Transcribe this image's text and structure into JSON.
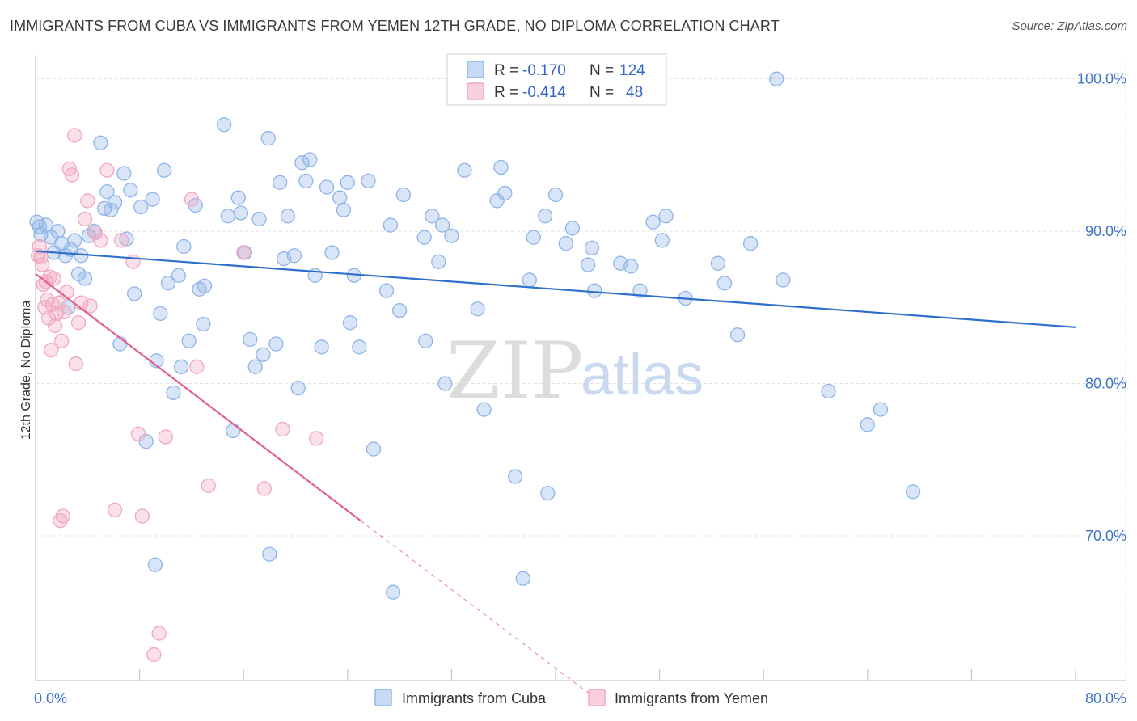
{
  "header": {
    "title": "IMMIGRANTS FROM CUBA VS IMMIGRANTS FROM YEMEN 12TH GRADE, NO DIPLOMA CORRELATION CHART",
    "source": "Source: ZipAtlas.com"
  },
  "watermark": {
    "zip": "ZIP",
    "atlas": "atlas"
  },
  "legend": {
    "rows": [
      {
        "r_label": "R =",
        "r_value": "-0.170",
        "n_label": "N =",
        "n_value": "124",
        "color": "#8fb4e8"
      },
      {
        "r_label": "R =",
        "r_value": "-0.414",
        "n_label": "N =",
        "n_value": "48",
        "color": "#f2a7c0"
      }
    ]
  },
  "chart_data": {
    "type": "scatter",
    "title": "IMMIGRANTS FROM CUBA VS IMMIGRANTS FROM YEMEN 12TH GRADE, NO DIPLOMA CORRELATION CHART",
    "xlabel": "",
    "ylabel": "12th Grade, No Diploma",
    "xlim": [
      0,
      80
    ],
    "ylim": [
      60.5,
      102
    ],
    "x_tick_labels": [
      "0.0%",
      "80.0%"
    ],
    "y_ticks": [
      70,
      80,
      90,
      100
    ],
    "y_tick_labels": [
      "70.0%",
      "80.0%",
      "90.0%",
      "100.0%"
    ],
    "grid": true,
    "legend_position": "top-center",
    "series": [
      {
        "name": "Immigrants from Cuba",
        "color": "#8fb4e8",
        "line_color": "#2f6fcc",
        "trend": {
          "x": [
            0,
            80
          ],
          "y": [
            88.7,
            83.7
          ]
        },
        "points": [
          [
            0.1,
            90.6
          ],
          [
            0.4,
            89.8
          ],
          [
            0.8,
            90.4
          ],
          [
            1.2,
            89.6
          ],
          [
            1.4,
            88.6
          ],
          [
            1.7,
            90.0
          ],
          [
            2.0,
            89.2
          ],
          [
            2.3,
            88.4
          ],
          [
            2.5,
            85.0
          ],
          [
            2.7,
            88.8
          ],
          [
            3.0,
            89.4
          ],
          [
            3.3,
            87.2
          ],
          [
            3.5,
            88.4
          ],
          [
            3.8,
            86.9
          ],
          [
            4.1,
            89.7
          ],
          [
            4.5,
            90.0
          ],
          [
            5.0,
            95.8
          ],
          [
            5.3,
            91.5
          ],
          [
            5.5,
            92.6
          ],
          [
            5.8,
            91.4
          ],
          [
            6.1,
            91.9
          ],
          [
            6.5,
            82.6
          ],
          [
            6.8,
            93.8
          ],
          [
            7.0,
            89.5
          ],
          [
            7.3,
            92.7
          ],
          [
            7.6,
            85.9
          ],
          [
            8.1,
            91.6
          ],
          [
            8.5,
            76.2
          ],
          [
            9.0,
            92.1
          ],
          [
            9.3,
            81.5
          ],
          [
            9.6,
            84.6
          ],
          [
            9.9,
            94.0
          ],
          [
            10.2,
            86.6
          ],
          [
            10.6,
            79.4
          ],
          [
            11.0,
            87.1
          ],
          [
            11.2,
            81.1
          ],
          [
            11.4,
            89.0
          ],
          [
            11.8,
            82.8
          ],
          [
            12.3,
            91.7
          ],
          [
            12.6,
            86.2
          ],
          [
            12.9,
            83.9
          ],
          [
            13.0,
            86.4
          ],
          [
            14.5,
            97.0
          ],
          [
            14.8,
            91.0
          ],
          [
            15.2,
            76.9
          ],
          [
            15.6,
            92.2
          ],
          [
            15.8,
            91.2
          ],
          [
            16.1,
            88.6
          ],
          [
            16.5,
            82.9
          ],
          [
            16.9,
            81.1
          ],
          [
            17.2,
            90.8
          ],
          [
            17.5,
            81.9
          ],
          [
            17.9,
            96.1
          ],
          [
            18.5,
            82.6
          ],
          [
            18.8,
            93.2
          ],
          [
            19.1,
            88.2
          ],
          [
            19.4,
            91.0
          ],
          [
            19.9,
            88.4
          ],
          [
            20.2,
            79.7
          ],
          [
            20.5,
            94.5
          ],
          [
            20.8,
            93.3
          ],
          [
            21.1,
            94.7
          ],
          [
            21.5,
            87.1
          ],
          [
            22.0,
            82.4
          ],
          [
            22.4,
            92.9
          ],
          [
            22.8,
            88.6
          ],
          [
            23.4,
            92.2
          ],
          [
            23.7,
            91.4
          ],
          [
            24.0,
            93.2
          ],
          [
            24.2,
            84.0
          ],
          [
            24.5,
            87.1
          ],
          [
            24.9,
            82.4
          ],
          [
            25.6,
            93.3
          ],
          [
            27.0,
            86.1
          ],
          [
            27.3,
            90.4
          ],
          [
            28.0,
            84.8
          ],
          [
            28.3,
            92.4
          ],
          [
            29.9,
            89.6
          ],
          [
            30.5,
            91.0
          ],
          [
            31.0,
            88.0
          ],
          [
            31.3,
            90.4
          ],
          [
            32.0,
            89.7
          ],
          [
            33.0,
            94.0
          ],
          [
            34.0,
            84.9
          ],
          [
            34.5,
            78.3
          ],
          [
            35.5,
            92.0
          ],
          [
            35.8,
            94.2
          ],
          [
            36.1,
            92.5
          ],
          [
            36.9,
            73.9
          ],
          [
            37.5,
            67.2
          ],
          [
            38.0,
            86.8
          ],
          [
            38.3,
            89.6
          ],
          [
            39.2,
            91.0
          ],
          [
            39.4,
            72.8
          ],
          [
            40.0,
            92.4
          ],
          [
            40.8,
            89.2
          ],
          [
            41.3,
            90.2
          ],
          [
            42.5,
            87.8
          ],
          [
            42.8,
            88.9
          ],
          [
            43.0,
            86.1
          ],
          [
            45.0,
            87.9
          ],
          [
            45.8,
            87.7
          ],
          [
            46.5,
            86.1
          ],
          [
            47.5,
            90.6
          ],
          [
            48.2,
            89.4
          ],
          [
            48.5,
            91.0
          ],
          [
            50.0,
            85.6
          ],
          [
            52.5,
            87.9
          ],
          [
            53.0,
            86.6
          ],
          [
            54.0,
            83.2
          ],
          [
            55.0,
            89.2
          ],
          [
            57.0,
            100.0
          ],
          [
            57.5,
            86.8
          ],
          [
            61.0,
            79.5
          ],
          [
            64.0,
            77.3
          ],
          [
            65.0,
            78.3
          ],
          [
            67.5,
            72.9
          ],
          [
            27.5,
            66.3
          ],
          [
            18.0,
            68.8
          ],
          [
            9.2,
            68.1
          ],
          [
            26.0,
            75.7
          ],
          [
            30.0,
            82.8
          ],
          [
            31.5,
            80.0
          ],
          [
            0.3,
            90.3
          ]
        ]
      },
      {
        "name": "Immigrants from Yemen",
        "color": "#f2a7c0",
        "line_color": "#e0608e",
        "trend": {
          "x": [
            0,
            25
          ],
          "y": [
            87.2,
            71.0
          ]
        },
        "trend_dashed": {
          "x": [
            25,
            42.5
          ],
          "y": [
            71.0,
            59.7
          ]
        },
        "points": [
          [
            0.3,
            89.0
          ],
          [
            0.4,
            88.3
          ],
          [
            0.5,
            87.8
          ],
          [
            0.6,
            86.5
          ],
          [
            0.7,
            85.0
          ],
          [
            0.9,
            85.5
          ],
          [
            1.0,
            84.3
          ],
          [
            1.1,
            87.0
          ],
          [
            1.2,
            82.2
          ],
          [
            1.3,
            85.2
          ],
          [
            1.4,
            86.9
          ],
          [
            1.5,
            83.8
          ],
          [
            1.6,
            84.6
          ],
          [
            1.8,
            85.3
          ],
          [
            2.0,
            82.8
          ],
          [
            2.2,
            84.7
          ],
          [
            2.4,
            86.0
          ],
          [
            2.6,
            94.1
          ],
          [
            2.8,
            93.7
          ],
          [
            3.0,
            96.3
          ],
          [
            3.1,
            81.3
          ],
          [
            3.3,
            84.0
          ],
          [
            3.5,
            85.3
          ],
          [
            3.8,
            90.8
          ],
          [
            4.2,
            85.1
          ],
          [
            4.6,
            89.9
          ],
          [
            5.0,
            89.4
          ],
          [
            5.5,
            94.0
          ],
          [
            6.1,
            71.7
          ],
          [
            6.6,
            89.4
          ],
          [
            7.5,
            88.0
          ],
          [
            7.9,
            76.7
          ],
          [
            8.2,
            71.3
          ],
          [
            9.1,
            62.2
          ],
          [
            9.5,
            63.6
          ],
          [
            10.0,
            76.5
          ],
          [
            12.0,
            92.1
          ],
          [
            12.4,
            81.1
          ],
          [
            13.3,
            73.3
          ],
          [
            16.0,
            88.6
          ],
          [
            17.6,
            73.1
          ],
          [
            19.0,
            77.0
          ],
          [
            21.6,
            76.4
          ],
          [
            4.0,
            92.0
          ],
          [
            0.8,
            86.7
          ],
          [
            1.9,
            71.0
          ],
          [
            2.1,
            71.3
          ],
          [
            0.2,
            88.4
          ]
        ]
      }
    ]
  },
  "bottom_legend": {
    "items": [
      {
        "label": "Immigrants from Cuba",
        "color": "#8fb4e8"
      },
      {
        "label": "Immigrants from Yemen",
        "color": "#f2a7c0"
      }
    ]
  }
}
